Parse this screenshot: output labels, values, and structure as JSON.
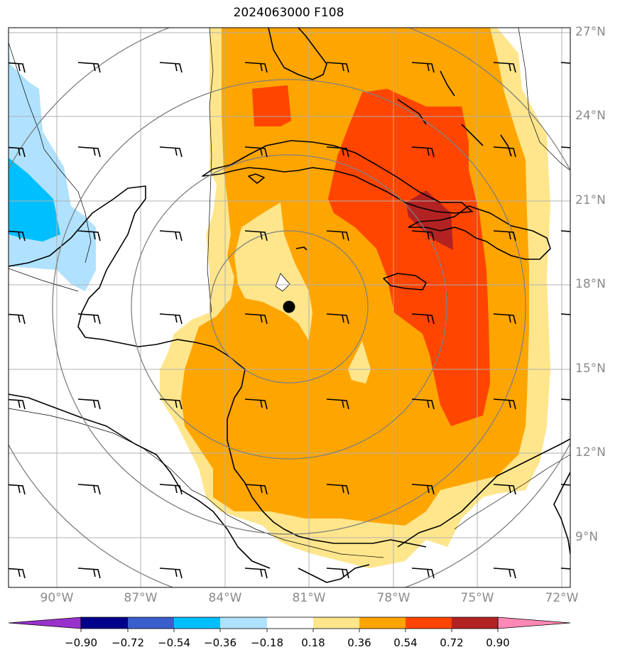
{
  "title": "2024063000 F108",
  "map": {
    "extent": {
      "lon_min": -92.0,
      "lon_max": -71.5,
      "lat_min": 7.5,
      "lat_max": 27.0
    },
    "lon_ticks": [
      {
        "value": -90,
        "label": "90°W"
      },
      {
        "value": -87,
        "label": "87°W"
      },
      {
        "value": -84,
        "label": "84°W"
      },
      {
        "value": -81,
        "label": "81°W"
      },
      {
        "value": -78,
        "label": "78°W"
      },
      {
        "value": -75,
        "label": "75°W"
      },
      {
        "value": -72,
        "label": "72°W"
      }
    ],
    "lat_ticks": [
      {
        "value": 27,
        "label": "27°N"
      },
      {
        "value": 24,
        "label": "24°N"
      },
      {
        "value": 21,
        "label": "21°N"
      },
      {
        "value": 18,
        "label": "18°N"
      },
      {
        "value": 15,
        "label": "15°N"
      },
      {
        "value": 12,
        "label": "12°N"
      },
      {
        "value": 9,
        "label": "9°N"
      }
    ],
    "center": {
      "lon": -81.7,
      "lat": 17.2
    },
    "range_rings_deg": [
      3,
      6,
      9,
      12
    ],
    "gridline_color": "#b0b0b0",
    "ring_color": "#808080"
  },
  "colorbar": {
    "tick_labels": [
      "−0.90",
      "−0.72",
      "−0.54",
      "−0.36",
      "−0.18",
      "0.18",
      "0.36",
      "0.54",
      "0.72",
      "0.90"
    ],
    "colors": [
      "#9932cc",
      "#00008b",
      "#3a5fcd",
      "#00bfff",
      "#b0e2ff",
      "#ffffff",
      "#ffe68c",
      "#ffa500",
      "#ff4500",
      "#b22222",
      "#ff88b4"
    ]
  }
}
